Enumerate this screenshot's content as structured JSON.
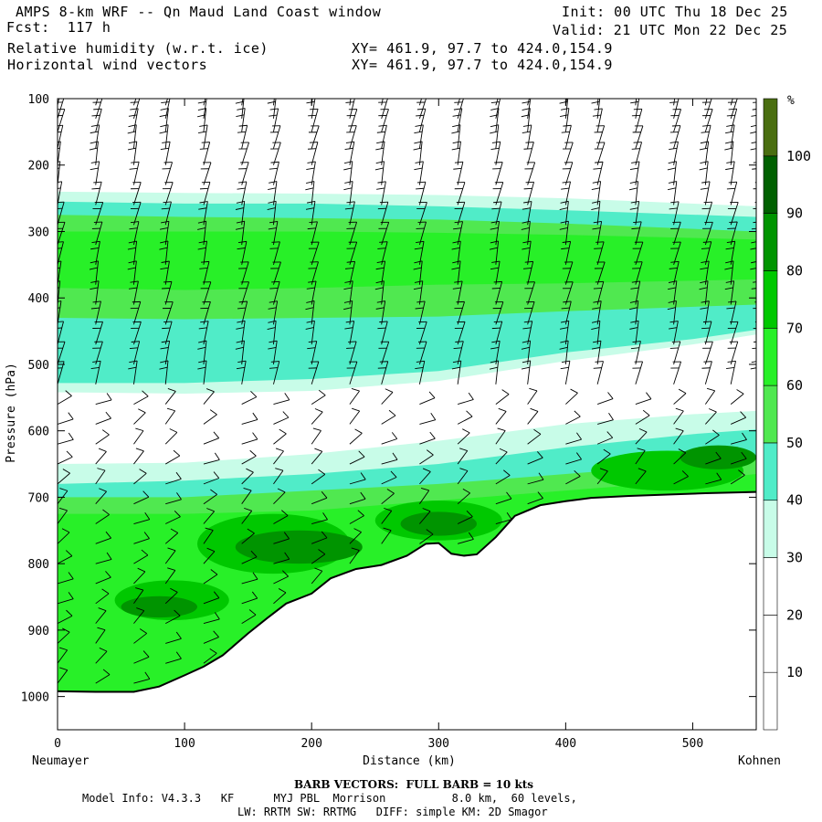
{
  "header": {
    "title": "AMPS 8-km WRF -- Qn Maud Land Coast window",
    "forecast": "Fcst:  117 h",
    "field1": "Relative humidity (w.r.t. ice)",
    "field2": "Horizontal wind vectors",
    "xy1": "XY= 461.9, 97.7 to 424.0,154.9",
    "xy2": "XY= 461.9, 97.7 to 424.0,154.9",
    "init": "Init: 00 UTC Thu 18 Dec 25",
    "valid": "Valid: 21 UTC Mon 22 Dec 25"
  },
  "footer": {
    "barb_note": "BARB VECTORS:  FULL BARB = 10 kts",
    "model_line1": "Model Info: V4.3.3   KF      MYJ PBL  Morrison          8.0 km,  60 levels,",
    "model_line2": "LW: RRTM SW: RRTMG   DIFF: simple KM: 2D Smagor"
  },
  "chart_data": {
    "type": "heatmap",
    "title": "Relative humidity (w.r.t. ice) cross-section with horizontal wind vectors",
    "xlabel": "Distance (km)",
    "ylabel": "Pressure (hPa)",
    "x_left_label": "Neumayer",
    "x_right_label": "Kohnen",
    "xlim": [
      0,
      550
    ],
    "ylim": [
      1050,
      100
    ],
    "x_ticks": [
      0,
      100,
      200,
      300,
      400,
      500
    ],
    "y_ticks": [
      100,
      200,
      300,
      400,
      500,
      600,
      700,
      800,
      900,
      1000
    ],
    "colorbar": {
      "unit": "%",
      "levels": [
        10,
        20,
        30,
        40,
        50,
        60,
        70,
        80,
        90,
        100
      ],
      "colors": [
        "#ffffff",
        "#ffffff",
        "#ffffff",
        "#c8fce8",
        "#50ecc8",
        "#50e850",
        "#28f028",
        "#00c800",
        "#009400",
        "#006000",
        "#4a6e10"
      ]
    },
    "terrain_pressure": [
      [
        0,
        992
      ],
      [
        30,
        993
      ],
      [
        60,
        993
      ],
      [
        80,
        985
      ],
      [
        100,
        968
      ],
      [
        115,
        955
      ],
      [
        130,
        938
      ],
      [
        150,
        905
      ],
      [
        165,
        882
      ],
      [
        180,
        860
      ],
      [
        200,
        845
      ],
      [
        215,
        822
      ],
      [
        235,
        808
      ],
      [
        255,
        802
      ],
      [
        275,
        788
      ],
      [
        290,
        770
      ],
      [
        300,
        769
      ],
      [
        310,
        785
      ],
      [
        320,
        788
      ],
      [
        330,
        786
      ],
      [
        345,
        760
      ],
      [
        360,
        728
      ],
      [
        380,
        712
      ],
      [
        400,
        706
      ],
      [
        420,
        701
      ],
      [
        450,
        698
      ],
      [
        480,
        696
      ],
      [
        510,
        694
      ],
      [
        550,
        692
      ]
    ],
    "rh_layers": [
      {
        "rh": 35,
        "top": [
          [
            0,
            240
          ],
          [
            100,
            242
          ],
          [
            200,
            243
          ],
          [
            300,
            245
          ],
          [
            400,
            250
          ],
          [
            550,
            262
          ]
        ],
        "bottom": [
          [
            0,
            542
          ],
          [
            100,
            544
          ],
          [
            200,
            540
          ],
          [
            300,
            525
          ],
          [
            400,
            495
          ],
          [
            500,
            470
          ],
          [
            550,
            455
          ]
        ]
      },
      {
        "rh": 45,
        "top": [
          [
            0,
            255
          ],
          [
            100,
            258
          ],
          [
            200,
            258
          ],
          [
            300,
            262
          ],
          [
            400,
            268
          ],
          [
            550,
            278
          ]
        ],
        "bottom": [
          [
            0,
            528
          ],
          [
            100,
            528
          ],
          [
            200,
            522
          ],
          [
            300,
            510
          ],
          [
            400,
            482
          ],
          [
            500,
            462
          ],
          [
            550,
            448
          ]
        ]
      },
      {
        "rh": 55,
        "top": [
          [
            0,
            275
          ],
          [
            100,
            278
          ],
          [
            200,
            280
          ],
          [
            300,
            282
          ],
          [
            400,
            288
          ],
          [
            550,
            300
          ]
        ],
        "bottom": [
          [
            0,
            430
          ],
          [
            100,
            432
          ],
          [
            200,
            430
          ],
          [
            300,
            428
          ],
          [
            400,
            420
          ],
          [
            550,
            410
          ]
        ]
      },
      {
        "rh": 65,
        "top": [
          [
            0,
            300
          ],
          [
            100,
            300
          ],
          [
            200,
            300
          ],
          [
            300,
            302
          ],
          [
            400,
            305
          ],
          [
            550,
            312
          ]
        ],
        "bottom": [
          [
            0,
            385
          ],
          [
            100,
            388
          ],
          [
            200,
            385
          ],
          [
            300,
            380
          ],
          [
            400,
            378
          ],
          [
            550,
            372
          ]
        ]
      }
    ],
    "low_layers": [
      {
        "rh": 35,
        "top": [
          [
            0,
            650
          ],
          [
            100,
            648
          ],
          [
            200,
            635
          ],
          [
            300,
            615
          ],
          [
            400,
            590
          ],
          [
            500,
            575
          ],
          [
            550,
            570
          ]
        ]
      },
      {
        "rh": 45,
        "top": [
          [
            0,
            680
          ],
          [
            100,
            675
          ],
          [
            200,
            665
          ],
          [
            300,
            650
          ],
          [
            400,
            625
          ],
          [
            500,
            605
          ],
          [
            550,
            598
          ]
        ]
      },
      {
        "rh": 55,
        "top": [
          [
            0,
            700
          ],
          [
            100,
            700
          ],
          [
            200,
            690
          ],
          [
            300,
            680
          ],
          [
            400,
            665
          ],
          [
            500,
            650
          ],
          [
            550,
            640
          ]
        ]
      },
      {
        "rh": 65,
        "top": [
          [
            0,
            725
          ],
          [
            100,
            725
          ],
          [
            200,
            720
          ],
          [
            300,
            705
          ],
          [
            400,
            690
          ],
          [
            500,
            675
          ],
          [
            550,
            665
          ]
        ]
      }
    ],
    "moist_cores": [
      {
        "rh": 75,
        "x": 90,
        "p": 855,
        "rx": 45,
        "rp": 30
      },
      {
        "rh": 85,
        "x": 80,
        "p": 865,
        "rx": 30,
        "rp": 16
      },
      {
        "rh": 75,
        "x": 170,
        "p": 770,
        "rx": 60,
        "rp": 45
      },
      {
        "rh": 85,
        "x": 190,
        "p": 775,
        "rx": 50,
        "rp": 25
      },
      {
        "rh": 75,
        "x": 300,
        "p": 735,
        "rx": 50,
        "rp": 30
      },
      {
        "rh": 85,
        "x": 300,
        "p": 740,
        "rx": 30,
        "rp": 18
      },
      {
        "rh": 75,
        "x": 480,
        "p": 660,
        "rx": 60,
        "rp": 30
      },
      {
        "rh": 85,
        "x": 520,
        "p": 640,
        "rx": 30,
        "rp": 18
      }
    ],
    "wind_columns_km": [
      0,
      30,
      60,
      85,
      115,
      145,
      170,
      200,
      230,
      255,
      285,
      315,
      345,
      370,
      400,
      425,
      455,
      485,
      510,
      530,
      550
    ],
    "wind_levels_hpa": [
      110,
      130,
      150,
      175,
      200,
      230,
      260,
      290,
      320,
      350,
      380,
      410,
      440,
      470,
      500,
      530,
      560,
      590,
      620,
      650,
      680,
      710,
      740,
      770,
      800,
      830,
      860,
      890,
      920,
      950,
      980
    ]
  }
}
